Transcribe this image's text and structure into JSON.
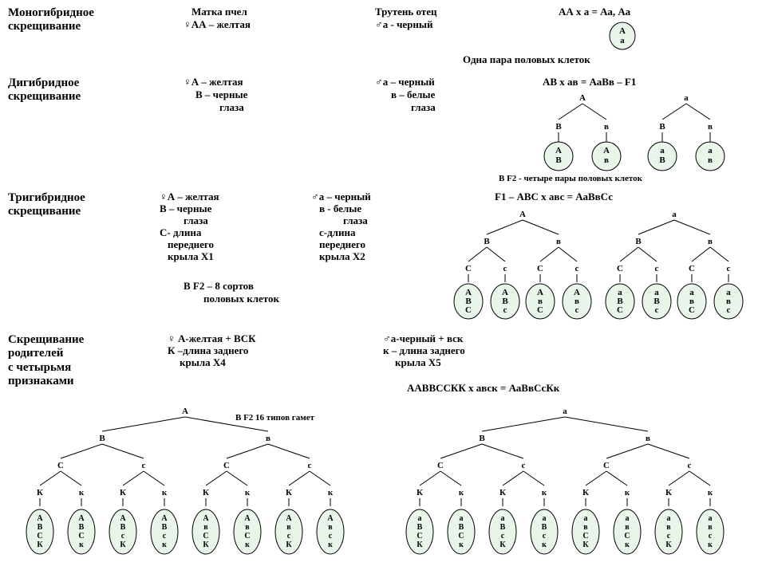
{
  "colors": {
    "gamete_fill": "#e8f5e8",
    "line": "#000000",
    "bg": "#ffffff",
    "text": "#000000"
  },
  "typography": {
    "heading_pt": 15,
    "body_pt": 13,
    "small_pt": 11,
    "family": "serif-bold"
  },
  "symbols": {
    "female": "♀",
    "male": "♂"
  },
  "section1": {
    "title1": "Моногибридное",
    "title2": "скрещивание",
    "matka": "Матка пчел",
    "mother": "♀АА – желтая",
    "truten": "Трутень отец",
    "father": "♂а - черный",
    "cross": "АА х а = Аа, Аа",
    "gamete": [
      "А",
      "а"
    ],
    "note": "Одна пара половых клеток"
  },
  "section2": {
    "title1": "Дигибридное",
    "title2": "скрещивание",
    "mother1": "♀А – желтая",
    "mother2": "В – черные",
    "mother3": "глаза",
    "father1": "♂а – черный",
    "father2": "в – белые",
    "father3": "глаза",
    "cross": "АВ х ав = АаВв – F1",
    "tree": {
      "top": [
        "А",
        "а"
      ],
      "mid": [
        "В",
        "в",
        "В",
        "в"
      ],
      "gametes": [
        [
          "А",
          "В"
        ],
        [
          "А",
          "в"
        ],
        [
          "а",
          "В"
        ],
        [
          "а",
          "в"
        ]
      ]
    },
    "note": "В F2 - четыре пары половых клеток"
  },
  "section3": {
    "title1": "Тригибридное",
    "title2": "скрещивание",
    "mother": [
      "♀А – желтая",
      "В – черные",
      "глаза",
      "С- длина",
      "переднего",
      "крыла Х1"
    ],
    "father": [
      "♂а – черный",
      "в - белые",
      "глаза",
      "с-длина",
      "переднего",
      "крыла Х2"
    ],
    "cross": "F1 – АВС х авс = АаВвСс",
    "note": "В   F2 – 8 сортов",
    "note2": "половых клеток",
    "tree": {
      "top": [
        "А",
        "а"
      ],
      "mid": [
        "В",
        "в",
        "В",
        "в"
      ],
      "low": [
        "С",
        "с",
        "С",
        "с",
        "С",
        "с",
        "С",
        "с"
      ],
      "gametes": [
        [
          "А",
          "В",
          "С"
        ],
        [
          "А",
          "В",
          "с"
        ],
        [
          "А",
          "в",
          "С"
        ],
        [
          "А",
          "в",
          "с"
        ],
        [
          "а",
          "В",
          "С"
        ],
        [
          "а",
          "В",
          "с"
        ],
        [
          "а",
          "в",
          "С"
        ],
        [
          "а",
          "в",
          "с"
        ]
      ]
    }
  },
  "section4": {
    "title1": "Скрещивание",
    "title2": "родителей",
    "title3": "с четырьмя",
    "title4": "признаками",
    "mother": [
      "♀ А-желтая + ВСК",
      "К –длина заднего",
      "крыла Х4"
    ],
    "father": [
      "♂а-черный + вск",
      "к – длина заднего",
      "крыла Х5"
    ],
    "cross": "ААВВССКК х авск = АаВвСсКк",
    "note": "В  F2  16 типов гамет",
    "tree": {
      "top": [
        "А",
        "а"
      ],
      "l2": [
        "В",
        "в",
        "В",
        "в"
      ],
      "l3": [
        "С",
        "с",
        "С",
        "с",
        "С",
        "с",
        "С",
        "с"
      ],
      "l4": [
        "К",
        "к",
        "К",
        "к",
        "К",
        "к",
        "К",
        "к",
        "К",
        "к",
        "К",
        "к",
        "К",
        "к",
        "К",
        "к"
      ],
      "gametes": [
        [
          "А",
          "В",
          "С",
          "К"
        ],
        [
          "А",
          "В",
          "С",
          "к"
        ],
        [
          "А",
          "В",
          "с",
          "К"
        ],
        [
          "А",
          "В",
          "с",
          "к"
        ],
        [
          "А",
          "в",
          "С",
          "К"
        ],
        [
          "А",
          "в",
          "С",
          "к"
        ],
        [
          "А",
          "в",
          "с",
          "К"
        ],
        [
          "А",
          "в",
          "с",
          "к"
        ],
        [
          "а",
          "В",
          "С",
          "К"
        ],
        [
          "а",
          "В",
          "С",
          "к"
        ],
        [
          "а",
          "В",
          "с",
          "К"
        ],
        [
          "а",
          "В",
          "с",
          "к"
        ],
        [
          "а",
          "в",
          "С",
          "К"
        ],
        [
          "а",
          "в",
          "С",
          "к"
        ],
        [
          "а",
          "в",
          "с",
          "К"
        ],
        [
          "а",
          "в",
          "с",
          "к"
        ]
      ]
    }
  }
}
